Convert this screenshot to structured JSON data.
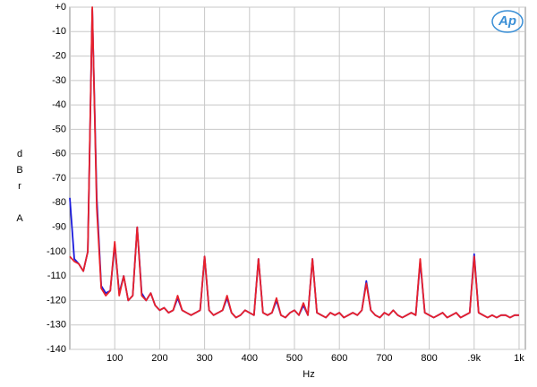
{
  "chart_data": {
    "type": "line",
    "xlabel": "Hz",
    "ylabel": "dBrA",
    "annotations": [
      "Ap"
    ],
    "x": [
      0,
      10,
      20,
      30,
      40,
      50,
      60,
      70,
      80,
      90,
      100,
      110,
      120,
      130,
      140,
      150,
      160,
      170,
      180,
      190,
      200,
      210,
      220,
      230,
      240,
      250,
      260,
      270,
      280,
      290,
      300,
      310,
      320,
      330,
      340,
      350,
      360,
      370,
      380,
      390,
      400,
      410,
      420,
      430,
      440,
      450,
      460,
      470,
      480,
      490,
      500,
      510,
      520,
      530,
      540,
      550,
      560,
      570,
      580,
      590,
      600,
      610,
      620,
      630,
      640,
      650,
      660,
      670,
      680,
      690,
      700,
      710,
      720,
      730,
      740,
      750,
      760,
      770,
      780,
      790,
      800,
      810,
      820,
      830,
      840,
      850,
      860,
      870,
      880,
      890,
      900,
      910,
      920,
      930,
      940,
      950,
      960,
      970,
      980,
      990,
      1000
    ],
    "series": [
      {
        "color": "#1a1adc",
        "values": [
          -78,
          -103,
          -105,
          -108,
          -100,
          -1,
          -78,
          -114,
          -117,
          -116,
          -97,
          -117,
          -110,
          -120,
          -118,
          -90,
          -117,
          -120,
          -117,
          -122,
          -124,
          -123,
          -125,
          -124,
          -119,
          -124,
          -125,
          -126,
          -125,
          -124,
          -102,
          -124,
          -126,
          -125,
          -124,
          -119,
          -125,
          -127,
          -126,
          -124,
          -125,
          -126,
          -103,
          -125,
          -126,
          -125,
          -120,
          -126,
          -127,
          -125,
          -124,
          -126,
          -122,
          -126,
          -103,
          -125,
          -126,
          -127,
          -125,
          -126,
          -125,
          -127,
          -126,
          -125,
          -126,
          -124,
          -112,
          -124,
          -126,
          -127,
          -125,
          -126,
          -124,
          -126,
          -127,
          -126,
          -125,
          -126,
          -104,
          -125,
          -126,
          -127,
          -126,
          -125,
          -127,
          -126,
          -125,
          -127,
          -126,
          -125,
          -101,
          -125,
          -126,
          -127,
          -126,
          -127,
          -126,
          -126,
          -127,
          -126,
          -126
        ]
      },
      {
        "color": "#e8202a",
        "values": [
          -102,
          -104,
          -105,
          -108,
          -100,
          0,
          -82,
          -115,
          -118,
          -116,
          -96,
          -118,
          -110,
          -120,
          -118,
          -90,
          -118,
          -120,
          -117,
          -122,
          -124,
          -123,
          -125,
          -124,
          -118,
          -124,
          -125,
          -126,
          -125,
          -124,
          -102,
          -124,
          -126,
          -125,
          -124,
          -118,
          -125,
          -127,
          -126,
          -124,
          -125,
          -126,
          -103,
          -125,
          -126,
          -125,
          -119,
          -126,
          -127,
          -125,
          -124,
          -126,
          -121,
          -126,
          -103,
          -125,
          -126,
          -127,
          -125,
          -126,
          -125,
          -127,
          -126,
          -125,
          -126,
          -124,
          -113,
          -124,
          -126,
          -127,
          -125,
          -126,
          -124,
          -126,
          -127,
          -126,
          -125,
          -126,
          -103,
          -125,
          -126,
          -127,
          -126,
          -125,
          -127,
          -126,
          -125,
          -127,
          -126,
          -125,
          -102,
          -125,
          -126,
          -127,
          -126,
          -127,
          -126,
          -126,
          -127,
          -126,
          -126
        ]
      }
    ],
    "xlim": [
      0,
      1014
    ],
    "xticks": [
      100,
      200,
      300,
      400,
      500,
      600,
      700,
      800,
      {
        "value": 900,
        "label": ".9k"
      },
      {
        "value": 1000,
        "label": "1k"
      }
    ],
    "ylim": [
      -140,
      0
    ],
    "yticks": [
      {
        "value": 0,
        "label": "+0"
      },
      -10,
      -20,
      -30,
      -40,
      -50,
      -60,
      -70,
      -80,
      -90,
      -100,
      -110,
      -120,
      -130,
      -140
    ],
    "grid": true
  }
}
